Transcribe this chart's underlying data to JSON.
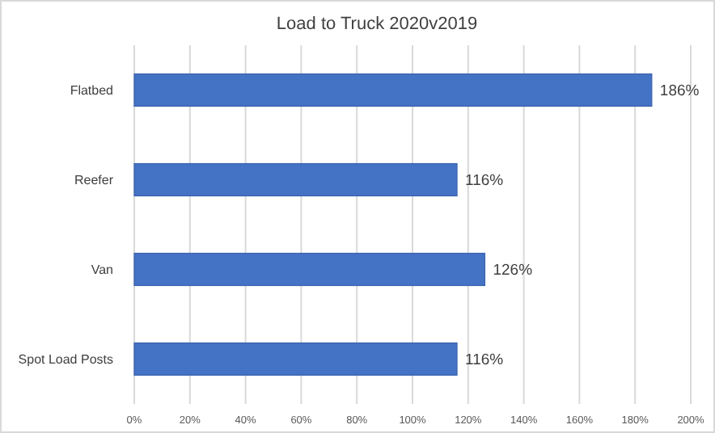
{
  "chart_data": {
    "type": "bar",
    "orientation": "horizontal",
    "title": "Load to Truck 2020v2019",
    "categories": [
      "Flatbed",
      "Reefer",
      "Van",
      "Spot Load Posts"
    ],
    "values": [
      186,
      116,
      126,
      116
    ],
    "value_labels": [
      "186%",
      "116%",
      "126%",
      "116%"
    ],
    "color": "#4472c4",
    "xlim": [
      0,
      200
    ],
    "xticks": [
      {
        "value": 0,
        "label": "0%"
      },
      {
        "value": 20,
        "label": "20%"
      },
      {
        "value": 40,
        "label": "40%"
      },
      {
        "value": 60,
        "label": "60%"
      },
      {
        "value": 80,
        "label": "80%"
      },
      {
        "value": 100,
        "label": "100%"
      },
      {
        "value": 120,
        "label": "120%"
      },
      {
        "value": 140,
        "label": "140%"
      },
      {
        "value": 160,
        "label": "160%"
      },
      {
        "value": 180,
        "label": "180%"
      },
      {
        "value": 200,
        "label": "200%"
      }
    ],
    "grid": "x"
  }
}
